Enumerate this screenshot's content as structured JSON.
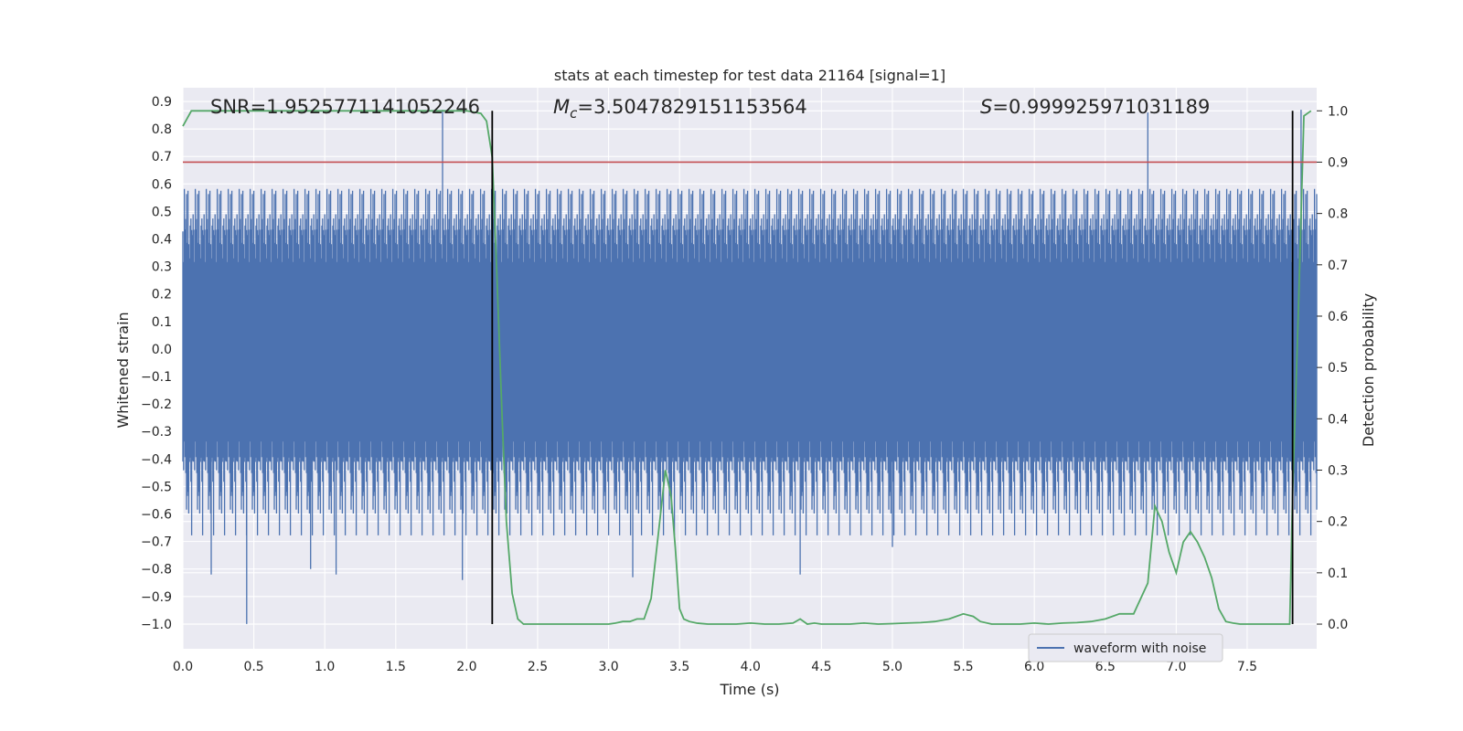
{
  "chart_data": {
    "type": "line",
    "title": "stats at each timestep for test data 21164 [signal=1]",
    "xlabel": "Time (s)",
    "ylabel": "Whitened strain",
    "y2label": "Detection probability",
    "xlim": [
      0.0,
      7.99
    ],
    "ylim": [
      -1.09,
      0.95
    ],
    "y2lim": [
      -0.048,
      1.045
    ],
    "x_ticks": [
      "0.0",
      "0.5",
      "1.0",
      "1.5",
      "2.0",
      "2.5",
      "3.0",
      "3.5",
      "4.0",
      "4.5",
      "5.0",
      "5.5",
      "6.0",
      "6.5",
      "7.0",
      "7.5"
    ],
    "y_ticks": [
      "0.9",
      "0.8",
      "0.7",
      "0.6",
      "0.5",
      "0.4",
      "0.3",
      "0.2",
      "0.1",
      "0.0",
      "−0.1",
      "−0.2",
      "−0.3",
      "−0.4",
      "−0.5",
      "−0.6",
      "−0.7",
      "−0.8",
      "−0.9",
      "−1.0"
    ],
    "y2_ticks": [
      "1.0",
      "0.9",
      "0.8",
      "0.7",
      "0.6",
      "0.5",
      "0.4",
      "0.3",
      "0.2",
      "0.1",
      "0.0"
    ],
    "grid": true,
    "legend_position": "lower-right",
    "annotations": {
      "snr": "SNR=1.9525771141052246",
      "mc_symbol": "M",
      "mc_sub": "c",
      "mc_value": "=3.5047829151153564",
      "s_symbol": "S",
      "s_value": "=0.999925971031189"
    },
    "colors": {
      "waveform": "#4c72b0",
      "probability": "#55a868",
      "threshold": "#c44e52",
      "markers": "#000000",
      "plot_bg": "#eaeaf2",
      "grid": "#ffffff"
    },
    "series": [
      {
        "name": "waveform with noise",
        "axis": "left",
        "style": "dense-noise",
        "x_range": [
          0.0,
          7.99
        ],
        "envelope_typical_max": 0.6,
        "envelope_typical_min": -0.6,
        "max": 0.87,
        "min": -1.0
      },
      {
        "axis": "right",
        "x": [
          0.0,
          0.06,
          0.1,
          0.5,
          1.0,
          1.5,
          2.0,
          2.1,
          2.14,
          2.18,
          2.21,
          2.25,
          2.28,
          2.32,
          2.36,
          2.4,
          2.45,
          2.5,
          2.6,
          2.7,
          2.8,
          2.9,
          3.0,
          3.05,
          3.1,
          3.15,
          3.2,
          3.25,
          3.3,
          3.36,
          3.4,
          3.44,
          3.47,
          3.5,
          3.53,
          3.57,
          3.62,
          3.7,
          3.8,
          3.9,
          4.0,
          4.1,
          4.2,
          4.3,
          4.35,
          4.4,
          4.45,
          4.5,
          4.6,
          4.7,
          4.8,
          4.9,
          5.0,
          5.1,
          5.2,
          5.3,
          5.4,
          5.5,
          5.57,
          5.62,
          5.7,
          5.8,
          5.9,
          6.0,
          6.1,
          6.2,
          6.3,
          6.4,
          6.5,
          6.6,
          6.7,
          6.8,
          6.85,
          6.9,
          6.95,
          7.0,
          7.05,
          7.1,
          7.15,
          7.2,
          7.25,
          7.3,
          7.35,
          7.4,
          7.45,
          7.5,
          7.6,
          7.7,
          7.8,
          7.82,
          7.86,
          7.9,
          7.95
        ],
        "values": [
          0.97,
          1.0,
          1.0,
          1.0,
          1.0,
          1.0,
          1.0,
          0.995,
          0.98,
          0.91,
          0.7,
          0.4,
          0.2,
          0.06,
          0.01,
          0.0,
          0.0,
          0.0,
          0.0,
          0.0,
          0.0,
          0.0,
          0.0,
          0.002,
          0.005,
          0.005,
          0.01,
          0.01,
          0.05,
          0.2,
          0.3,
          0.25,
          0.15,
          0.03,
          0.01,
          0.005,
          0.002,
          0.0,
          0.0,
          0.0,
          0.002,
          0.0,
          0.0,
          0.002,
          0.01,
          0.0,
          0.002,
          0.0,
          0.0,
          0.0,
          0.002,
          0.0,
          0.001,
          0.002,
          0.003,
          0.005,
          0.01,
          0.02,
          0.015,
          0.005,
          0.0,
          0.0,
          0.0,
          0.002,
          0.0,
          0.002,
          0.003,
          0.005,
          0.01,
          0.02,
          0.02,
          0.08,
          0.23,
          0.2,
          0.14,
          0.1,
          0.16,
          0.18,
          0.16,
          0.13,
          0.09,
          0.03,
          0.005,
          0.002,
          0.0,
          0.0,
          0.0,
          0.0,
          0.0,
          0.25,
          0.6,
          0.99,
          1.0
        ]
      }
    ],
    "threshold": 0.9,
    "vlines": [
      2.18,
      7.82
    ]
  }
}
